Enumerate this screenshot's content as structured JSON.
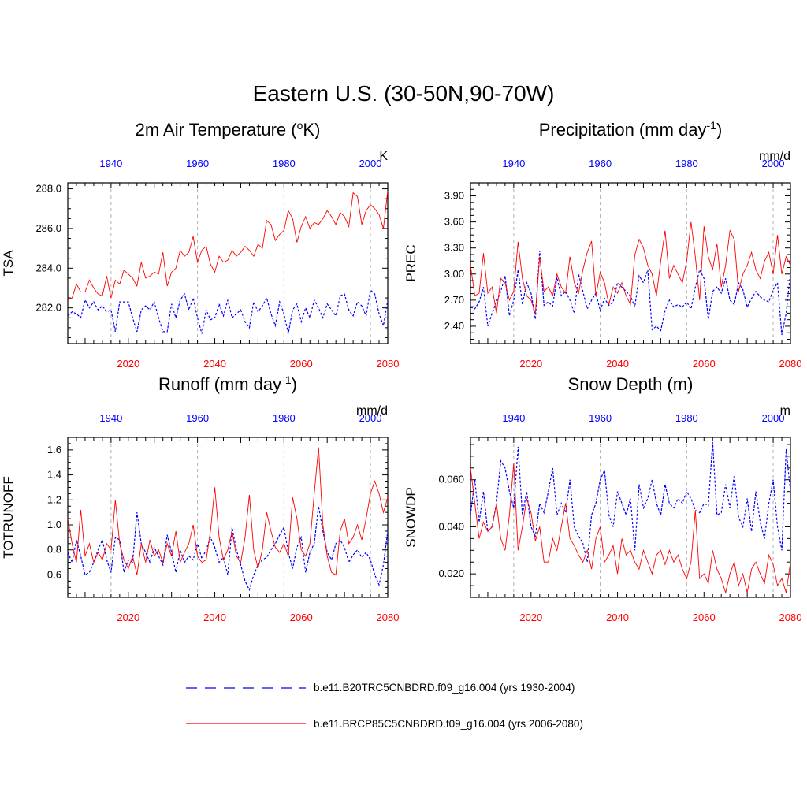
{
  "figure": {
    "title": "Eastern U.S. (30-50N,90-70W)"
  },
  "legend": [
    {
      "label": "b.e11.B20TRC5CNBDRD.f09_g16.004 (yrs 1930-2004)",
      "color": "#0000ff",
      "dash": "dashed"
    },
    {
      "label": "b.e11.BRCP85C5CNBDRD.f09_g16.004 (yrs 2006-2080)",
      "color": "#ff0000",
      "dash": "solid"
    }
  ],
  "chart_data": [
    {
      "id": "tsa",
      "type": "line",
      "title_main": "2m Air Temperature (",
      "title_sup": "o",
      "title_tail": "K)",
      "ylabel": "TSA",
      "units": "K",
      "ylim": [
        280.2,
        288.3
      ],
      "yticks": [
        282.0,
        284.0,
        286.0,
        288.0
      ],
      "ytick_labels": [
        "282.0",
        "284.0",
        "286.0",
        "288.0"
      ],
      "x_bottom": {
        "color": "#ff0000",
        "range": [
          2006,
          2080
        ],
        "ticks": [
          2020,
          2040,
          2060,
          2080
        ],
        "labels": [
          "2020",
          "2040",
          "2060",
          "2080"
        ]
      },
      "x_top": {
        "color": "#0000ff",
        "range": [
          1930,
          2004
        ],
        "ticks": [
          1940,
          1960,
          1980,
          2000
        ],
        "labels": [
          "1940",
          "1960",
          "1980",
          "2000"
        ]
      },
      "series": [
        {
          "name": "b.e11.B20TRC5CNBDRD.f09_g16.004 (yrs 1930-2004)",
          "color": "#0000ff",
          "dash": "dashed",
          "values": [
            281.6,
            281.8,
            281.7,
            281.5,
            282.4,
            282.0,
            282.3,
            281.9,
            282.1,
            281.8,
            281.9,
            280.8,
            282.3,
            282.3,
            282.3,
            281.5,
            280.8,
            281.9,
            282.1,
            281.9,
            282.3,
            281.5,
            280.8,
            280.8,
            282.2,
            281.5,
            282.4,
            282.7,
            281.9,
            282.5,
            281.5,
            280.7,
            281.9,
            281.4,
            281.5,
            282.2,
            281.6,
            282.4,
            281.5,
            281.7,
            281.9,
            281.3,
            281.0,
            282.3,
            281.8,
            282.1,
            282.5,
            281.7,
            281.1,
            282.3,
            281.7,
            280.7,
            281.9,
            282.2,
            281.3,
            282.0,
            281.5,
            282.4,
            282.0,
            281.5,
            282.2,
            281.9,
            281.6,
            282.6,
            282.7,
            281.9,
            281.6,
            282.3,
            282.1,
            281.6,
            282.9,
            282.7,
            281.7,
            281.1,
            282.4
          ]
        },
        {
          "name": "b.e11.BRCP85C5CNBDRD.f09_g16.004 (yrs 2006-2080)",
          "color": "#ff0000",
          "dash": "solid",
          "values": [
            282.4,
            282.5,
            283.2,
            282.8,
            282.8,
            283.4,
            283.0,
            282.7,
            282.6,
            283.6,
            282.5,
            283.4,
            283.2,
            283.9,
            283.7,
            283.5,
            283.1,
            284.3,
            283.5,
            283.6,
            283.8,
            283.7,
            284.8,
            283.1,
            283.8,
            284.0,
            284.9,
            284.6,
            284.8,
            285.6,
            284.3,
            284.9,
            285.1,
            284.2,
            283.8,
            284.6,
            284.3,
            284.4,
            284.9,
            284.6,
            284.8,
            285.1,
            284.9,
            284.6,
            285.2,
            285.0,
            286.4,
            286.2,
            285.4,
            285.7,
            285.9,
            286.9,
            286.5,
            285.3,
            286.1,
            286.6,
            286.0,
            286.3,
            286.2,
            286.5,
            286.9,
            286.6,
            286.2,
            286.8,
            286.6,
            286.1,
            287.8,
            287.6,
            286.2,
            286.9,
            287.2,
            287.0,
            286.7,
            286.0,
            287.9
          ]
        }
      ]
    },
    {
      "id": "prec",
      "type": "line",
      "title_main": "Precipitation (mm day",
      "title_sup": "-1",
      "title_tail": ")",
      "ylabel": "PREC",
      "units": "mm/d",
      "ylim": [
        2.2,
        4.05
      ],
      "yticks": [
        2.4,
        2.7,
        3.0,
        3.3,
        3.6,
        3.9
      ],
      "ytick_labels": [
        "2.40",
        "2.70",
        "3.00",
        "3.30",
        "3.60",
        "3.90"
      ],
      "x_bottom": {
        "color": "#ff0000",
        "range": [
          2006,
          2080
        ],
        "ticks": [
          2020,
          2040,
          2060,
          2080
        ],
        "labels": [
          "2020",
          "2040",
          "2060",
          "2080"
        ]
      },
      "x_top": {
        "color": "#0000ff",
        "range": [
          1930,
          2004
        ],
        "ticks": [
          1940,
          1960,
          1980,
          2000
        ],
        "labels": [
          "1940",
          "1960",
          "1980",
          "2000"
        ]
      },
      "series": [
        {
          "name": "b.e11.B20TRC5CNBDRD.f09_g16.004 (yrs 1930-2004)",
          "color": "#0000ff",
          "dash": "dashed",
          "values": [
            2.62,
            2.6,
            2.68,
            2.85,
            2.4,
            2.55,
            2.68,
            2.8,
            2.98,
            2.52,
            2.7,
            3.05,
            2.65,
            2.9,
            2.78,
            2.48,
            3.27,
            2.64,
            2.68,
            2.63,
            2.96,
            2.75,
            2.8,
            2.7,
            2.55,
            3.0,
            2.8,
            2.6,
            2.7,
            2.78,
            2.58,
            2.72,
            2.64,
            2.68,
            2.9,
            2.85,
            2.8,
            2.75,
            2.62,
            2.98,
            2.9,
            3.05,
            2.36,
            2.4,
            2.35,
            2.58,
            2.7,
            2.62,
            2.65,
            2.62,
            2.68,
            2.6,
            2.85,
            3.05,
            2.95,
            2.48,
            2.8,
            2.85,
            2.78,
            2.95,
            2.7,
            2.65,
            2.9,
            2.82,
            2.62,
            2.72,
            2.8,
            2.74,
            2.7,
            2.68,
            2.82,
            2.9,
            2.3,
            2.55,
            3.02
          ]
        },
        {
          "name": "b.e11.BRCP85C5CNBDRD.f09_g16.004 (yrs 2006-2080)",
          "color": "#ff0000",
          "dash": "solid",
          "values": [
            3.1,
            2.75,
            2.78,
            3.24,
            2.78,
            2.85,
            2.55,
            2.95,
            2.9,
            2.7,
            2.8,
            3.37,
            2.95,
            2.75,
            2.7,
            2.55,
            3.2,
            2.8,
            2.85,
            2.75,
            3.0,
            2.85,
            2.78,
            3.2,
            2.9,
            2.78,
            3.05,
            3.25,
            3.38,
            2.75,
            3.02,
            2.9,
            2.65,
            2.85,
            2.78,
            2.9,
            2.75,
            2.65,
            3.22,
            3.4,
            3.3,
            3.1,
            3.0,
            2.75,
            3.15,
            3.5,
            2.95,
            3.1,
            3.0,
            2.9,
            3.15,
            3.6,
            3.2,
            2.7,
            3.55,
            3.2,
            3.05,
            3.35,
            2.85,
            3.1,
            3.5,
            3.4,
            2.8,
            3.0,
            3.1,
            3.25,
            3.05,
            2.95,
            3.15,
            3.25,
            3.0,
            3.45,
            3.0,
            3.2,
            3.1
          ]
        }
      ]
    },
    {
      "id": "totrunoff",
      "type": "line",
      "title_main": "Runoff (mm day",
      "title_sup": "-1",
      "title_tail": ")",
      "ylabel": "TOTRUNOFF",
      "units": "mm/d",
      "ylim": [
        0.42,
        1.7
      ],
      "yticks": [
        0.6,
        0.8,
        1.0,
        1.2,
        1.4,
        1.6
      ],
      "ytick_labels": [
        "0.6",
        "0.8",
        "1.0",
        "1.2",
        "1.4",
        "1.6"
      ],
      "x_bottom": {
        "color": "#ff0000",
        "range": [
          2006,
          2080
        ],
        "ticks": [
          2020,
          2040,
          2060,
          2080
        ],
        "labels": [
          "2020",
          "2040",
          "2060",
          "2080"
        ]
      },
      "x_top": {
        "color": "#0000ff",
        "range": [
          1930,
          2004
        ],
        "ticks": [
          1940,
          1960,
          1980,
          2000
        ],
        "labels": [
          "1940",
          "1960",
          "1980",
          "2000"
        ]
      },
      "series": [
        {
          "name": "b.e11.B20TRC5CNBDRD.f09_g16.004 (yrs 1930-2004)",
          "color": "#0000ff",
          "dash": "dashed",
          "values": [
            0.78,
            0.7,
            0.88,
            0.75,
            0.6,
            0.62,
            0.7,
            0.8,
            0.88,
            0.72,
            0.62,
            0.9,
            0.88,
            0.62,
            0.72,
            0.7,
            1.1,
            0.85,
            0.78,
            0.7,
            0.82,
            0.75,
            0.68,
            0.92,
            0.78,
            0.62,
            0.8,
            0.7,
            0.75,
            0.72,
            0.85,
            0.73,
            0.8,
            0.9,
            0.82,
            0.7,
            0.74,
            0.6,
            0.98,
            0.8,
            0.68,
            0.55,
            0.48,
            0.6,
            0.68,
            0.72,
            0.74,
            0.8,
            0.85,
            0.92,
            0.98,
            0.78,
            0.65,
            0.82,
            0.9,
            0.62,
            0.78,
            0.85,
            1.15,
            0.95,
            0.78,
            0.72,
            0.85,
            0.88,
            0.82,
            0.7,
            0.76,
            0.8,
            0.74,
            0.78,
            0.72,
            0.6,
            0.52,
            0.68,
            0.95
          ]
        },
        {
          "name": "b.e11.BRCP85C5CNBDRD.f09_g16.004 (yrs 2006-2080)",
          "color": "#ff0000",
          "dash": "solid",
          "values": [
            1.05,
            0.85,
            0.7,
            1.12,
            0.75,
            0.85,
            0.7,
            0.78,
            0.72,
            0.85,
            0.8,
            1.2,
            0.85,
            0.72,
            0.65,
            0.75,
            0.6,
            0.85,
            0.7,
            0.88,
            0.75,
            0.8,
            0.7,
            0.85,
            0.75,
            0.95,
            0.7,
            0.78,
            0.85,
            1.0,
            0.75,
            0.7,
            0.72,
            0.95,
            1.3,
            0.9,
            0.72,
            0.8,
            0.95,
            0.75,
            0.7,
            0.9,
            1.24,
            0.8,
            0.65,
            0.8,
            1.1,
            0.95,
            0.82,
            0.78,
            0.85,
            0.75,
            1.22,
            1.05,
            0.8,
            0.75,
            0.85,
            1.25,
            1.62,
            1.0,
            0.75,
            0.62,
            0.6,
            0.95,
            1.05,
            0.85,
            0.9,
            1.0,
            0.88,
            1.05,
            1.25,
            1.35,
            1.25,
            1.1,
            1.22
          ]
        }
      ]
    },
    {
      "id": "snowdp",
      "type": "line",
      "title_main": "Snow Depth (m)",
      "title_sup": "",
      "title_tail": "",
      "ylabel": "SNOWDP",
      "units": "m",
      "ylim": [
        0.01,
        0.078
      ],
      "yticks": [
        0.02,
        0.04,
        0.06
      ],
      "ytick_labels": [
        "0.020",
        "0.040",
        "0.060"
      ],
      "x_bottom": {
        "color": "#ff0000",
        "range": [
          2006,
          2080
        ],
        "ticks": [
          2020,
          2040,
          2060,
          2080
        ],
        "labels": [
          "2020",
          "2040",
          "2060",
          "2080"
        ]
      },
      "x_top": {
        "color": "#0000ff",
        "range": [
          1930,
          2004
        ],
        "ticks": [
          1940,
          1960,
          1980,
          2000
        ],
        "labels": [
          "1940",
          "1960",
          "1980",
          "2000"
        ]
      },
      "series": [
        {
          "name": "b.e11.B20TRC5CNBDRD.f09_g16.004 (yrs 1930-2004)",
          "color": "#0000ff",
          "dash": "dashed",
          "values": [
            0.045,
            0.06,
            0.042,
            0.055,
            0.038,
            0.04,
            0.05,
            0.068,
            0.065,
            0.055,
            0.048,
            0.074,
            0.045,
            0.055,
            0.04,
            0.036,
            0.05,
            0.046,
            0.055,
            0.065,
            0.045,
            0.05,
            0.046,
            0.06,
            0.04,
            0.036,
            0.033,
            0.025,
            0.045,
            0.05,
            0.06,
            0.064,
            0.045,
            0.04,
            0.055,
            0.05,
            0.045,
            0.052,
            0.03,
            0.058,
            0.048,
            0.052,
            0.06,
            0.05,
            0.045,
            0.058,
            0.05,
            0.048,
            0.052,
            0.05,
            0.055,
            0.052,
            0.047,
            0.046,
            0.05,
            0.049,
            0.076,
            0.045,
            0.046,
            0.058,
            0.048,
            0.062,
            0.044,
            0.04,
            0.052,
            0.038,
            0.055,
            0.042,
            0.035,
            0.05,
            0.06,
            0.04,
            0.03,
            0.073,
            0.055
          ]
        },
        {
          "name": "b.e11.BRCP85C5CNBDRD.f09_g16.004 (yrs 2006-2080)",
          "color": "#ff0000",
          "dash": "solid",
          "values": [
            0.065,
            0.05,
            0.035,
            0.042,
            0.038,
            0.04,
            0.05,
            0.035,
            0.03,
            0.045,
            0.067,
            0.03,
            0.04,
            0.052,
            0.046,
            0.034,
            0.04,
            0.025,
            0.025,
            0.035,
            0.03,
            0.04,
            0.05,
            0.035,
            0.032,
            0.028,
            0.025,
            0.03,
            0.022,
            0.035,
            0.04,
            0.025,
            0.028,
            0.032,
            0.02,
            0.035,
            0.028,
            0.03,
            0.025,
            0.022,
            0.03,
            0.025,
            0.02,
            0.028,
            0.03,
            0.024,
            0.03,
            0.025,
            0.028,
            0.022,
            0.018,
            0.025,
            0.047,
            0.018,
            0.02,
            0.016,
            0.03,
            0.022,
            0.018,
            0.012,
            0.02,
            0.025,
            0.015,
            0.02,
            0.012,
            0.022,
            0.025,
            0.02,
            0.016,
            0.028,
            0.024,
            0.015,
            0.018,
            0.012,
            0.025
          ]
        }
      ]
    }
  ]
}
